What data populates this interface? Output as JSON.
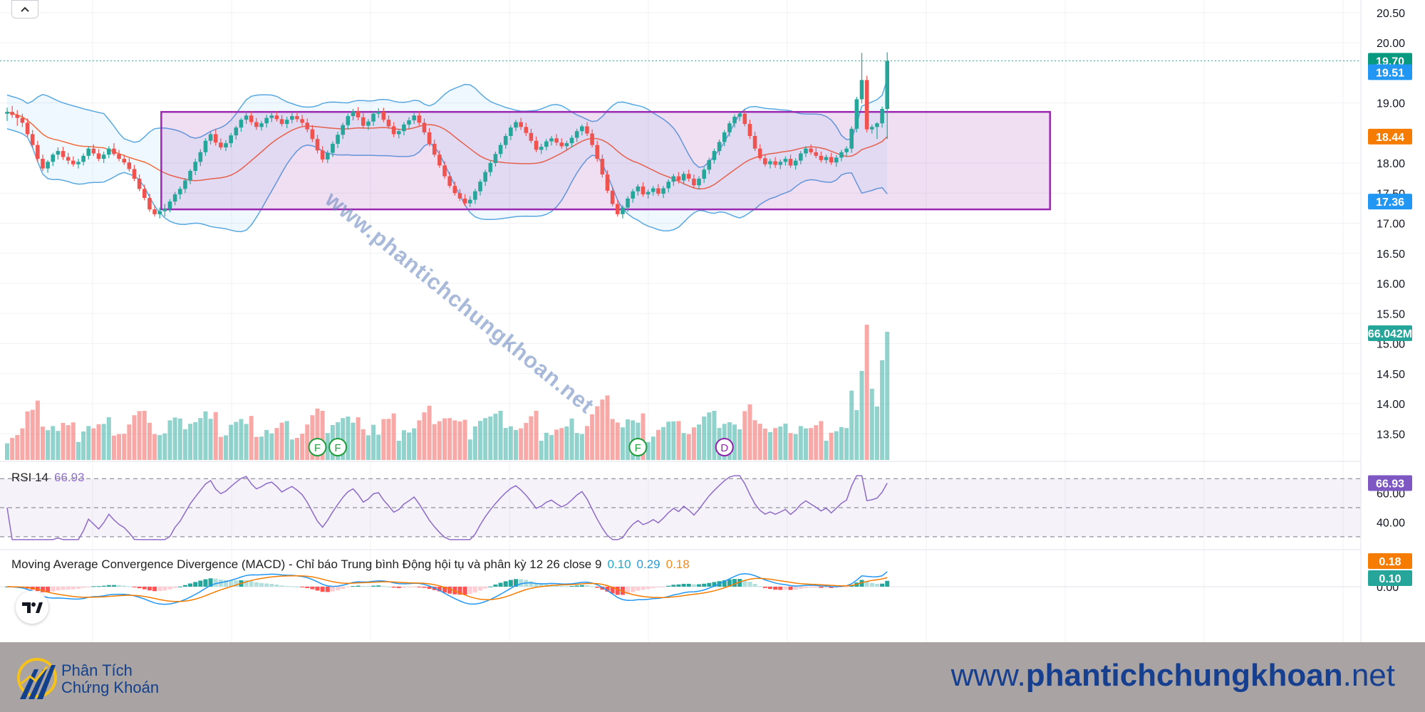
{
  "chart_data": {
    "type": "candlestick",
    "price_axis": {
      "ticks": [
        "20.50",
        "20.00",
        "19.00",
        "18.00",
        "17.50",
        "17.00",
        "16.50",
        "16.00",
        "15.50",
        "15.00",
        "14.50",
        "14.00",
        "13.50"
      ],
      "ylim": [
        13.0,
        20.7
      ]
    },
    "price_tags": [
      {
        "label": "19.70",
        "value": 19.7,
        "color": "#089981"
      },
      {
        "label": "19.51",
        "value": 19.51,
        "color": "#2196f3"
      },
      {
        "label": "18.44",
        "value": 18.44,
        "color": "#f57c00"
      },
      {
        "label": "17.36",
        "value": 17.36,
        "color": "#2196f3"
      }
    ],
    "volume_tag": {
      "label": "66.042M",
      "color": "#26a69a"
    },
    "last_price": 19.7,
    "range_box": {
      "top": 18.85,
      "bottom": 17.23,
      "start_bar": 31,
      "end_bar": 205,
      "color": "#9c27b0"
    },
    "candles": [
      [
        18.82,
        18.92,
        18.7,
        18.85
      ],
      [
        18.85,
        18.95,
        18.75,
        18.8
      ],
      [
        18.8,
        18.88,
        18.62,
        18.75
      ],
      [
        18.75,
        18.82,
        18.6,
        18.67
      ],
      [
        18.67,
        18.74,
        18.44,
        18.48
      ],
      [
        18.48,
        18.55,
        18.25,
        18.3
      ],
      [
        18.3,
        18.37,
        18.02,
        18.07
      ],
      [
        18.07,
        18.14,
        17.87,
        17.91
      ],
      [
        17.91,
        18.05,
        17.84,
        18.02
      ],
      [
        18.02,
        18.17,
        17.95,
        18.14
      ],
      [
        18.14,
        18.26,
        18.06,
        18.2
      ],
      [
        18.2,
        18.27,
        18.05,
        18.1
      ],
      [
        18.1,
        18.17,
        17.98,
        18.04
      ],
      [
        18.04,
        18.11,
        17.94,
        17.98
      ],
      [
        17.98,
        18.07,
        17.91,
        18.02
      ],
      [
        18.02,
        18.16,
        17.96,
        18.12
      ],
      [
        18.12,
        18.28,
        18.06,
        18.24
      ],
      [
        18.24,
        18.31,
        18.12,
        18.16
      ],
      [
        18.16,
        18.23,
        18.03,
        18.07
      ],
      [
        18.07,
        18.19,
        18.0,
        18.14
      ],
      [
        18.14,
        18.28,
        18.08,
        18.24
      ],
      [
        18.24,
        18.33,
        18.12,
        18.15
      ],
      [
        18.15,
        18.22,
        18.03,
        18.07
      ],
      [
        18.07,
        18.14,
        17.97,
        18.01
      ],
      [
        18.01,
        18.08,
        17.86,
        17.9
      ],
      [
        17.9,
        17.97,
        17.7,
        17.74
      ],
      [
        17.74,
        17.81,
        17.53,
        17.57
      ],
      [
        17.57,
        17.64,
        17.38,
        17.42
      ],
      [
        17.42,
        17.49,
        17.19,
        17.23
      ],
      [
        17.23,
        17.3,
        17.11,
        17.15
      ],
      [
        17.15,
        17.26,
        17.08,
        17.2
      ],
      [
        17.2,
        17.32,
        17.11,
        17.24
      ],
      [
        17.24,
        17.4,
        17.18,
        17.36
      ],
      [
        17.36,
        17.52,
        17.3,
        17.48
      ],
      [
        17.48,
        17.61,
        17.4,
        17.57
      ],
      [
        17.57,
        17.75,
        17.5,
        17.71
      ],
      [
        17.71,
        17.9,
        17.65,
        17.87
      ],
      [
        17.87,
        18.07,
        17.8,
        18.02
      ],
      [
        18.02,
        18.23,
        17.95,
        18.18
      ],
      [
        18.18,
        18.41,
        18.12,
        18.37
      ],
      [
        18.37,
        18.52,
        18.31,
        18.48
      ],
      [
        18.48,
        18.56,
        18.29,
        18.34
      ],
      [
        18.34,
        18.41,
        18.22,
        18.26
      ],
      [
        18.26,
        18.38,
        18.2,
        18.33
      ],
      [
        18.33,
        18.5,
        18.26,
        18.46
      ],
      [
        18.46,
        18.62,
        18.39,
        18.59
      ],
      [
        18.59,
        18.75,
        18.52,
        18.72
      ],
      [
        18.72,
        18.85,
        18.65,
        18.79
      ],
      [
        18.79,
        18.86,
        18.63,
        18.68
      ],
      [
        18.68,
        18.75,
        18.55,
        18.6
      ],
      [
        18.6,
        18.7,
        18.54,
        18.66
      ],
      [
        18.66,
        18.8,
        18.59,
        18.75
      ],
      [
        18.75,
        18.85,
        18.68,
        18.79
      ],
      [
        18.79,
        18.86,
        18.69,
        18.73
      ],
      [
        18.73,
        18.8,
        18.61,
        18.65
      ],
      [
        18.65,
        18.77,
        18.58,
        18.72
      ],
      [
        18.72,
        18.83,
        18.66,
        18.78
      ],
      [
        18.78,
        18.85,
        18.68,
        18.73
      ],
      [
        18.73,
        18.8,
        18.62,
        18.67
      ],
      [
        18.67,
        18.74,
        18.51,
        18.56
      ],
      [
        18.56,
        18.63,
        18.35,
        18.4
      ],
      [
        18.4,
        18.47,
        18.16,
        18.21
      ],
      [
        18.21,
        18.28,
        18.01,
        18.06
      ],
      [
        18.06,
        18.21,
        18.0,
        18.17
      ],
      [
        18.17,
        18.36,
        18.1,
        18.32
      ],
      [
        18.32,
        18.52,
        18.25,
        18.47
      ],
      [
        18.47,
        18.67,
        18.4,
        18.63
      ],
      [
        18.63,
        18.82,
        18.56,
        18.78
      ],
      [
        18.78,
        18.9,
        18.71,
        18.86
      ],
      [
        18.86,
        18.93,
        18.71,
        18.76
      ],
      [
        18.76,
        18.83,
        18.57,
        18.62
      ],
      [
        18.62,
        18.73,
        18.55,
        18.69
      ],
      [
        18.69,
        18.86,
        18.62,
        18.82
      ],
      [
        18.82,
        18.91,
        18.75,
        18.85
      ],
      [
        18.85,
        18.92,
        18.68,
        18.72
      ],
      [
        18.72,
        18.79,
        18.57,
        18.61
      ],
      [
        18.61,
        18.68,
        18.43,
        18.48
      ],
      [
        18.48,
        18.57,
        18.41,
        18.53
      ],
      [
        18.53,
        18.68,
        18.46,
        18.64
      ],
      [
        18.64,
        18.76,
        18.57,
        18.71
      ],
      [
        18.71,
        18.83,
        18.65,
        18.79
      ],
      [
        18.79,
        18.86,
        18.62,
        18.67
      ],
      [
        18.67,
        18.74,
        18.47,
        18.51
      ],
      [
        18.51,
        18.58,
        18.28,
        18.32
      ],
      [
        18.32,
        18.39,
        18.1,
        18.14
      ],
      [
        18.14,
        18.21,
        17.92,
        17.96
      ],
      [
        17.96,
        18.03,
        17.74,
        17.78
      ],
      [
        17.78,
        17.85,
        17.58,
        17.62
      ],
      [
        17.62,
        17.69,
        17.46,
        17.5
      ],
      [
        17.5,
        17.57,
        17.37,
        17.41
      ],
      [
        17.41,
        17.48,
        17.29,
        17.33
      ],
      [
        17.33,
        17.45,
        17.27,
        17.39
      ],
      [
        17.39,
        17.57,
        17.32,
        17.53
      ],
      [
        17.53,
        17.73,
        17.46,
        17.69
      ],
      [
        17.69,
        17.89,
        17.62,
        17.85
      ],
      [
        17.85,
        18.04,
        17.78,
        18.0
      ],
      [
        18.0,
        18.19,
        17.94,
        18.15
      ],
      [
        18.15,
        18.34,
        18.09,
        18.3
      ],
      [
        18.3,
        18.49,
        18.24,
        18.45
      ],
      [
        18.45,
        18.63,
        18.38,
        18.59
      ],
      [
        18.59,
        18.72,
        18.53,
        18.68
      ],
      [
        18.68,
        18.75,
        18.55,
        18.6
      ],
      [
        18.6,
        18.67,
        18.45,
        18.5
      ],
      [
        18.5,
        18.57,
        18.33,
        18.37
      ],
      [
        18.37,
        18.44,
        18.18,
        18.22
      ],
      [
        18.22,
        18.32,
        18.15,
        18.27
      ],
      [
        18.27,
        18.4,
        18.21,
        18.36
      ],
      [
        18.36,
        18.45,
        18.29,
        18.41
      ],
      [
        18.41,
        18.48,
        18.29,
        18.34
      ],
      [
        18.34,
        18.41,
        18.24,
        18.28
      ],
      [
        18.28,
        18.37,
        18.21,
        18.33
      ],
      [
        18.33,
        18.46,
        18.26,
        18.42
      ],
      [
        18.42,
        18.57,
        18.35,
        18.53
      ],
      [
        18.53,
        18.64,
        18.46,
        18.61
      ],
      [
        18.61,
        18.68,
        18.45,
        18.49
      ],
      [
        18.49,
        18.56,
        18.26,
        18.3
      ],
      [
        18.3,
        18.37,
        18.02,
        18.07
      ],
      [
        18.07,
        18.14,
        17.76,
        17.81
      ],
      [
        17.81,
        17.88,
        17.5,
        17.54
      ],
      [
        17.54,
        17.61,
        17.28,
        17.32
      ],
      [
        17.32,
        17.39,
        17.11,
        17.15
      ],
      [
        17.15,
        17.3,
        17.08,
        17.26
      ],
      [
        17.26,
        17.45,
        17.19,
        17.41
      ],
      [
        17.41,
        17.57,
        17.34,
        17.53
      ],
      [
        17.53,
        17.65,
        17.46,
        17.61
      ],
      [
        17.61,
        17.68,
        17.44,
        17.48
      ],
      [
        17.48,
        17.56,
        17.41,
        17.52
      ],
      [
        17.52,
        17.62,
        17.46,
        17.58
      ],
      [
        17.58,
        17.65,
        17.45,
        17.49
      ],
      [
        17.49,
        17.62,
        17.42,
        17.58
      ],
      [
        17.58,
        17.73,
        17.51,
        17.69
      ],
      [
        17.69,
        17.82,
        17.62,
        17.78
      ],
      [
        17.78,
        17.85,
        17.66,
        17.71
      ],
      [
        17.71,
        17.86,
        17.64,
        17.82
      ],
      [
        17.82,
        17.89,
        17.69,
        17.74
      ],
      [
        17.74,
        17.81,
        17.59,
        17.63
      ],
      [
        17.63,
        17.78,
        17.56,
        17.74
      ],
      [
        17.74,
        17.93,
        17.67,
        17.89
      ],
      [
        17.89,
        18.09,
        17.82,
        18.05
      ],
      [
        18.05,
        18.24,
        17.99,
        18.2
      ],
      [
        18.2,
        18.39,
        18.13,
        18.35
      ],
      [
        18.35,
        18.55,
        18.28,
        18.51
      ],
      [
        18.51,
        18.7,
        18.44,
        18.66
      ],
      [
        18.66,
        18.81,
        18.59,
        18.77
      ],
      [
        18.77,
        18.85,
        18.7,
        18.82
      ],
      [
        18.82,
        18.89,
        18.61,
        18.65
      ],
      [
        18.65,
        18.72,
        18.4,
        18.45
      ],
      [
        18.45,
        18.52,
        18.2,
        18.24
      ],
      [
        18.24,
        18.31,
        18.04,
        18.08
      ],
      [
        18.08,
        18.15,
        17.94,
        17.98
      ],
      [
        17.98,
        18.07,
        17.91,
        18.03
      ],
      [
        18.03,
        18.1,
        17.92,
        17.97
      ],
      [
        17.97,
        18.06,
        17.9,
        18.02
      ],
      [
        18.02,
        18.11,
        17.96,
        18.07
      ],
      [
        18.07,
        18.14,
        17.92,
        17.96
      ],
      [
        17.96,
        18.08,
        17.89,
        18.04
      ],
      [
        18.04,
        18.2,
        17.98,
        18.16
      ],
      [
        18.16,
        18.28,
        18.1,
        18.24
      ],
      [
        18.24,
        18.31,
        18.14,
        18.18
      ],
      [
        18.18,
        18.25,
        18.08,
        18.12
      ],
      [
        18.12,
        18.19,
        18.01,
        18.05
      ],
      [
        18.05,
        18.14,
        17.99,
        18.1
      ],
      [
        18.1,
        18.17,
        17.97,
        18.01
      ],
      [
        18.01,
        18.13,
        17.94,
        18.09
      ],
      [
        18.09,
        18.22,
        18.03,
        18.18
      ],
      [
        18.18,
        18.28,
        18.11,
        18.24
      ],
      [
        18.24,
        18.61,
        18.17,
        18.57
      ],
      [
        18.57,
        19.1,
        18.51,
        19.06
      ],
      [
        19.06,
        19.83,
        18.99,
        19.38
      ],
      [
        19.38,
        19.45,
        18.51,
        18.56
      ],
      [
        18.56,
        18.64,
        18.49,
        18.6
      ],
      [
        18.6,
        18.68,
        18.4,
        18.66
      ],
      [
        18.66,
        18.94,
        18.59,
        18.9
      ],
      [
        18.9,
        19.84,
        18.4,
        19.7
      ]
    ],
    "range_box_label": "",
    "rsi": {
      "label": "RSI 14",
      "value_label": "66.93",
      "ticks": [
        "60.00",
        "40.00"
      ],
      "upper": 70,
      "lower": 30,
      "mid": 50,
      "ylim": [
        26,
        75
      ],
      "color": "#8e6bc7"
    },
    "macd": {
      "label": "Moving Average Convergence Divergence (MACD) - Chỉ báo Trung bình Động hội tụ và phân kỳ 12 26 close 9",
      "values": [
        "0.10",
        "0.29",
        "0.18"
      ],
      "tags": [
        {
          "label": "0.18",
          "color": "#f57c00"
        },
        {
          "label": "0.10",
          "color": "#26a69a"
        }
      ],
      "zero_tick": "0.00",
      "macd_color": "#2196f3",
      "signal_color": "#f57c00"
    },
    "events": [
      {
        "label": "F",
        "bar": 61
      },
      {
        "label": "F",
        "bar": 65
      },
      {
        "label": "F",
        "bar": 124
      },
      {
        "label": "D",
        "bar": 141
      }
    ],
    "colors": {
      "up": "#26a69a",
      "down": "#ef5350",
      "ma": "#f26c3c",
      "bands": "#5aa8e0"
    }
  },
  "footer": {
    "brand_line1": "Phân Tích",
    "brand_line2": "Chứng Khoán",
    "site_prefix": "www.",
    "site_main": "phantichchungkhoan",
    "site_suffix": ".net"
  },
  "watermark": "www.phantichchungkhoan.net"
}
